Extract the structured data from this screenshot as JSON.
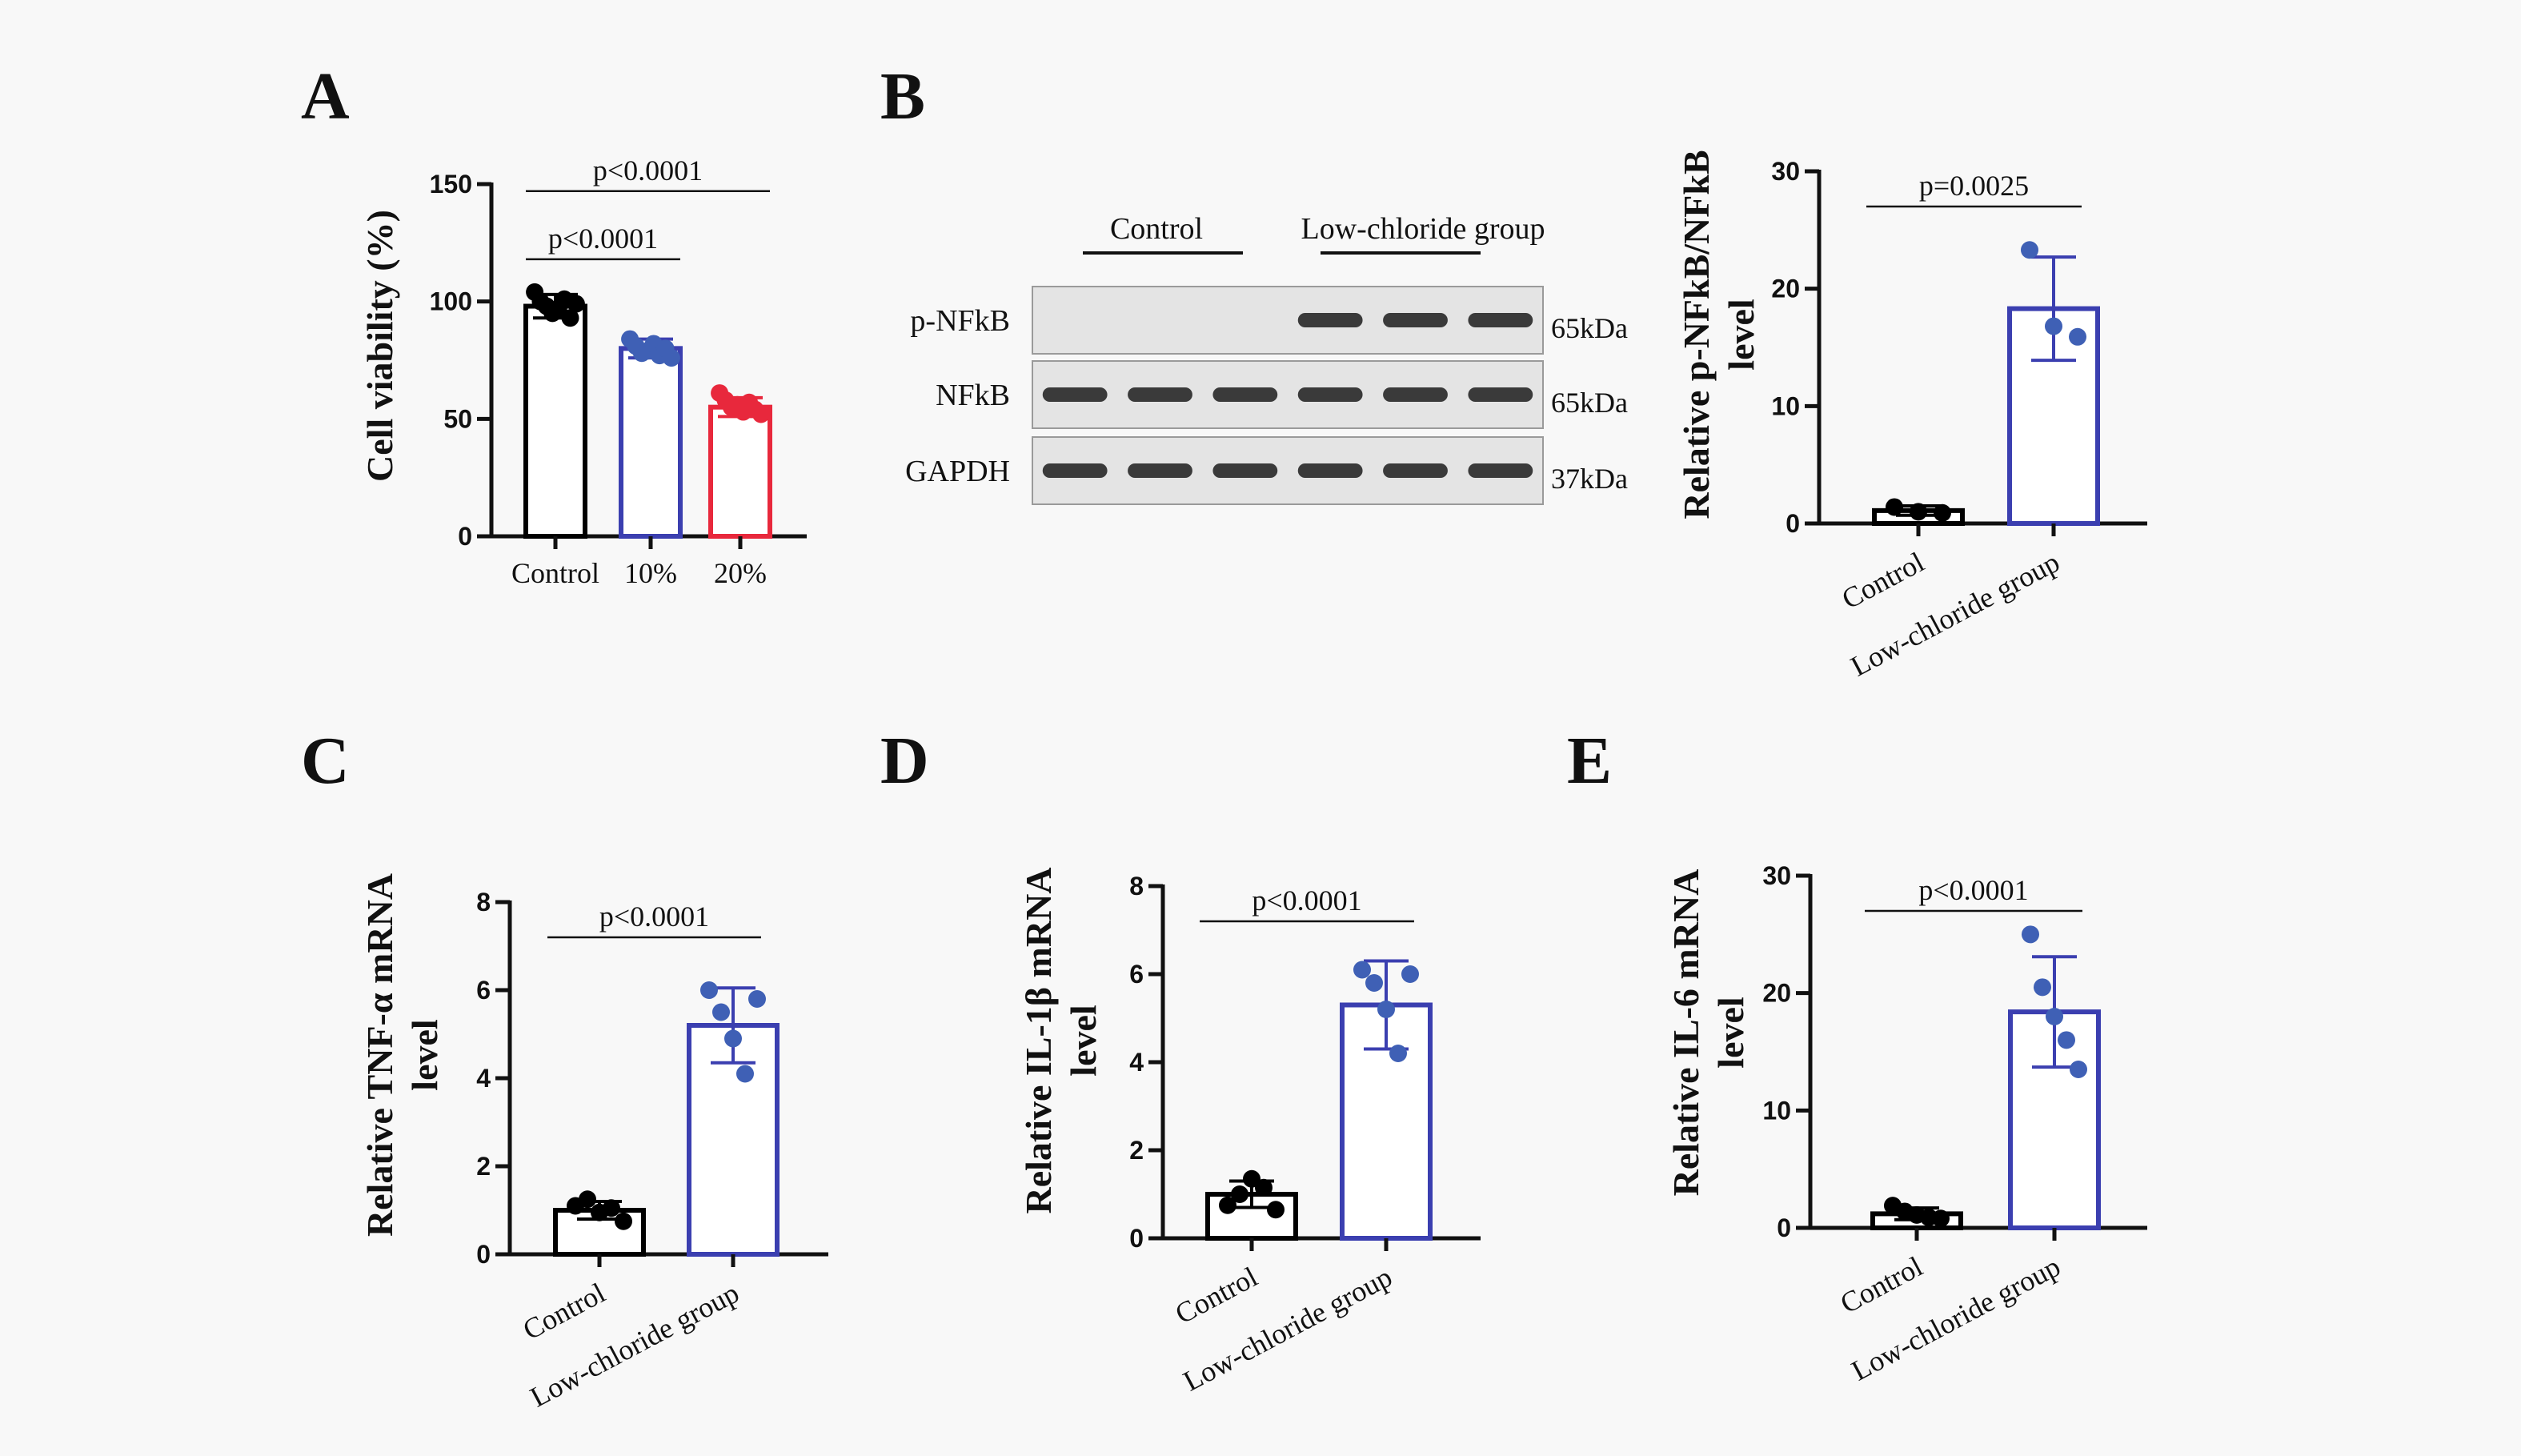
{
  "panel_letters": {
    "A": "A",
    "B": "B",
    "C": "C",
    "D": "D",
    "E": "E"
  },
  "blot": {
    "groups": [
      "Control",
      "Low-chloride group"
    ],
    "rows": [
      {
        "label": "p-NFkB",
        "kda": "65kDa",
        "lanes": [
          0,
          0,
          0,
          1,
          1,
          1
        ]
      },
      {
        "label": "NFkB",
        "kda": "65kDa",
        "lanes": [
          1,
          1,
          1,
          1,
          1,
          1
        ]
      },
      {
        "label": "GAPDH",
        "kda": "37kDa",
        "lanes": [
          1,
          1,
          1,
          1,
          1,
          1
        ]
      }
    ]
  },
  "colors": {
    "control": "#000000",
    "blue": "#3b3fb0",
    "red": "#e8283c",
    "blue_dot": "#3f60b5",
    "red_dot": "#e8283c"
  },
  "chart_data": [
    {
      "id": "A",
      "type": "bar",
      "title": "",
      "xlabel": "",
      "ylabel": "Cell viability (%)",
      "ylim": [
        0,
        150
      ],
      "yticks": [
        0,
        50,
        100,
        150
      ],
      "categories": [
        "Control",
        "10%",
        "20%"
      ],
      "values": [
        98,
        80,
        55
      ],
      "errors": [
        5,
        4,
        4
      ],
      "points": [
        [
          104,
          100,
          98,
          95,
          97,
          101,
          93,
          99
        ],
        [
          84,
          81,
          78,
          79,
          82,
          77,
          80,
          76
        ],
        [
          61,
          58,
          55,
          56,
          53,
          57,
          54,
          52
        ]
      ],
      "bar_colors": [
        "control",
        "blue",
        "red"
      ],
      "dot_colors": [
        "control",
        "blue_dot",
        "red_dot"
      ],
      "comparisons": [
        {
          "from": 0,
          "to": 1,
          "label": "p<0.0001",
          "level": 1
        },
        {
          "from": 0,
          "to": 2,
          "label": "p<0.0001",
          "level": 2
        }
      ]
    },
    {
      "id": "B",
      "type": "bar",
      "title": "",
      "xlabel": "",
      "ylabel": "Relative p-NFkB/NFkB level",
      "ylim": [
        0,
        30
      ],
      "yticks": [
        0,
        10,
        20,
        30
      ],
      "categories": [
        "Control",
        "Low-chloride group"
      ],
      "values": [
        1.1,
        18.3
      ],
      "errors": [
        0.4,
        4.4
      ],
      "points": [
        [
          1.4,
          1.0,
          0.9
        ],
        [
          23.3,
          16.8,
          15.9
        ]
      ],
      "bar_colors": [
        "control",
        "blue"
      ],
      "dot_colors": [
        "control",
        "blue_dot"
      ],
      "comparisons": [
        {
          "from": 0,
          "to": 1,
          "label": "p=0.0025",
          "level": 1
        }
      ]
    },
    {
      "id": "C",
      "type": "bar",
      "title": "",
      "xlabel": "",
      "ylabel": "Relative TNF-α mRNA level",
      "ylim": [
        0,
        8
      ],
      "yticks": [
        0,
        2,
        4,
        6,
        8
      ],
      "categories": [
        "Control",
        "Low-chloride group"
      ],
      "values": [
        1.0,
        5.2
      ],
      "errors": [
        0.2,
        0.85
      ],
      "points": [
        [
          1.1,
          1.25,
          0.95,
          1.05,
          0.75
        ],
        [
          6.0,
          5.5,
          4.9,
          4.1,
          5.8
        ]
      ],
      "bar_colors": [
        "control",
        "blue"
      ],
      "dot_colors": [
        "control",
        "blue_dot"
      ],
      "comparisons": [
        {
          "from": 0,
          "to": 1,
          "label": "p<0.0001",
          "level": 1
        }
      ]
    },
    {
      "id": "D",
      "type": "bar",
      "title": "",
      "xlabel": "",
      "ylabel": "Relative IL-1β mRNA level",
      "ylim": [
        0,
        8
      ],
      "yticks": [
        0,
        2,
        4,
        6,
        8
      ],
      "categories": [
        "Control",
        "Low-chloride group"
      ],
      "values": [
        1.0,
        5.3
      ],
      "errors": [
        0.3,
        1.0
      ],
      "points": [
        [
          0.75,
          1.0,
          1.35,
          1.15,
          0.65
        ],
        [
          6.1,
          5.8,
          5.2,
          4.2,
          6.0
        ]
      ],
      "bar_colors": [
        "control",
        "blue"
      ],
      "dot_colors": [
        "control",
        "blue_dot"
      ],
      "comparisons": [
        {
          "from": 0,
          "to": 1,
          "label": "p<0.0001",
          "level": 1
        }
      ]
    },
    {
      "id": "E",
      "type": "bar",
      "title": "",
      "xlabel": "",
      "ylabel": "Relative IL-6 mRNA level",
      "ylim": [
        0,
        30
      ],
      "yticks": [
        0,
        10,
        20,
        30
      ],
      "categories": [
        "Control",
        "Low-chloride group"
      ],
      "values": [
        1.2,
        18.4
      ],
      "errors": [
        0.5,
        4.7
      ],
      "points": [
        [
          1.9,
          1.4,
          1.1,
          0.9,
          0.8
        ],
        [
          25.0,
          20.5,
          18.0,
          16.0,
          13.5
        ]
      ],
      "bar_colors": [
        "control",
        "blue"
      ],
      "dot_colors": [
        "control",
        "blue_dot"
      ],
      "comparisons": [
        {
          "from": 0,
          "to": 1,
          "label": "p<0.0001",
          "level": 1
        }
      ]
    }
  ]
}
